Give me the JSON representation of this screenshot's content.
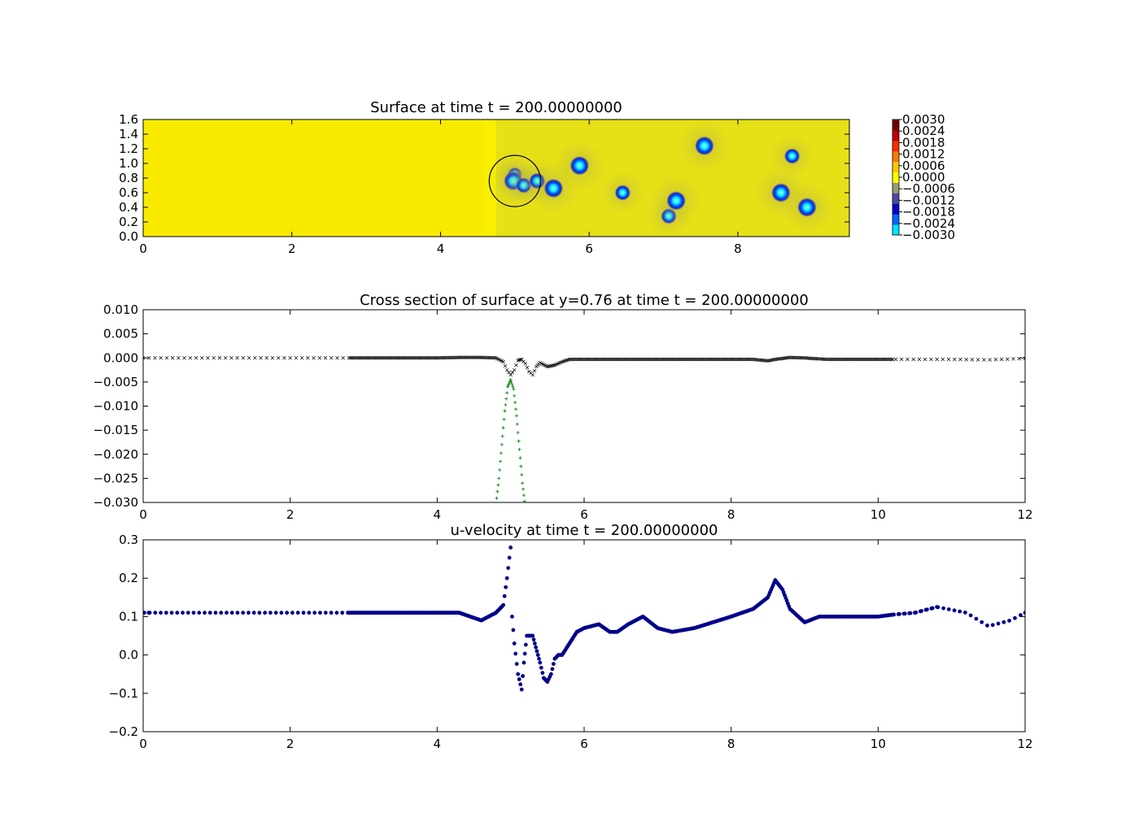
{
  "chart_data": [
    {
      "type": "heatmap",
      "title": "Surface at time t =   200.00000000",
      "xlim": [
        0,
        9.5
      ],
      "ylim": [
        0,
        1.6
      ],
      "xticks": [
        "0",
        "2",
        "4",
        "6",
        "8"
      ],
      "yticks": [
        "0.0",
        "0.2",
        "0.4",
        "0.6",
        "0.8",
        "1.0",
        "1.2",
        "1.4",
        "1.6"
      ],
      "colorbar": {
        "range": [
          -0.003,
          0.003
        ],
        "labels": [
          "0.0030",
          "0.0024",
          "0.0018",
          "0.0012",
          "0.0006",
          "0.0000",
          "−0.0006",
          "−0.0012",
          "−0.0018",
          "−0.0024",
          "−0.0030"
        ],
        "colormap": [
          "#00e5ff",
          "#0066ff",
          "#0000cc",
          "#4a4aa0",
          "#9a9a70",
          "#ffff00",
          "#ffc800",
          "#ff7a00",
          "#ff2a00",
          "#c00000",
          "#700000"
        ]
      },
      "background_color": "#f8f000",
      "depressions": [
        {
          "x": 5.0,
          "y": 0.85,
          "value": -0.0022
        },
        {
          "x": 4.98,
          "y": 0.76,
          "value": -0.003
        },
        {
          "x": 5.12,
          "y": 0.7,
          "value": -0.0024
        },
        {
          "x": 5.3,
          "y": 0.76,
          "value": -0.0025
        },
        {
          "x": 5.52,
          "y": 0.66,
          "value": -0.003
        },
        {
          "x": 5.87,
          "y": 0.97,
          "value": -0.003
        },
        {
          "x": 6.45,
          "y": 0.6,
          "value": -0.0024
        },
        {
          "x": 7.07,
          "y": 0.28,
          "value": -0.0024
        },
        {
          "x": 7.17,
          "y": 0.49,
          "value": -0.003
        },
        {
          "x": 7.55,
          "y": 1.24,
          "value": -0.003
        },
        {
          "x": 8.58,
          "y": 0.6,
          "value": -0.003
        },
        {
          "x": 8.73,
          "y": 1.1,
          "value": -0.0024
        },
        {
          "x": 8.93,
          "y": 0.4,
          "value": -0.003
        }
      ],
      "annotation_circle": {
        "x": 5.0,
        "y": 0.76,
        "radius": 0.35
      }
    },
    {
      "type": "scatter",
      "title": "Cross section of surface at y=0.76 at time t =   200.00000000",
      "xlim": [
        0,
        12
      ],
      "ylim": [
        -0.03,
        0.01
      ],
      "xticks": [
        "0",
        "2",
        "4",
        "6",
        "8",
        "10",
        "12"
      ],
      "yticks": [
        "0.010",
        "0.005",
        "0.000",
        "−0.005",
        "−0.010",
        "−0.015",
        "−0.020",
        "−0.025",
        "−0.030"
      ],
      "series": [
        {
          "marker": "x",
          "color": "#000000",
          "x": [
            0,
            0.5,
            1.0,
            1.5,
            2.0,
            2.5,
            2.8,
            3.5,
            4.0,
            4.3,
            4.6,
            4.8,
            4.9,
            4.95,
            5.0,
            5.05,
            5.1,
            5.15,
            5.2,
            5.25,
            5.3,
            5.35,
            5.4,
            5.5,
            5.6,
            5.7,
            5.8,
            6.0,
            6.5,
            7.0,
            7.5,
            8.0,
            8.3,
            8.5,
            8.6,
            8.8,
            9.0,
            9.3,
            9.6,
            10.0,
            10.2,
            10.5,
            11.0,
            11.5,
            12.0
          ],
          "y": [
            0.0,
            0.0,
            0.0,
            0.0,
            0.0,
            0.0,
            0.0,
            0.0,
            0.0,
            0.0001,
            0.0001,
            0.0,
            -0.0008,
            -0.0025,
            -0.0035,
            -0.0025,
            -0.0005,
            -0.0003,
            -0.0012,
            -0.0028,
            -0.0035,
            -0.0018,
            -0.001,
            -0.0018,
            -0.0015,
            -0.0008,
            -0.0003,
            -0.0003,
            -0.0003,
            -0.0003,
            -0.0003,
            -0.0003,
            -0.0003,
            -0.0006,
            -0.0003,
            0.0001,
            0.0,
            -0.0003,
            -0.0003,
            -0.0003,
            -0.0003,
            -0.0003,
            -0.0003,
            -0.0004,
            -0.0001
          ]
        },
        {
          "marker": "+",
          "color": "#007f00",
          "x": [
            4.8,
            4.84,
            4.88,
            4.92,
            4.96,
            5.0,
            5.04,
            5.08,
            5.12,
            5.16,
            5.2
          ],
          "y": [
            -0.0305,
            -0.025,
            -0.018,
            -0.011,
            -0.006,
            -0.0045,
            -0.0065,
            -0.012,
            -0.019,
            -0.026,
            -0.031
          ]
        }
      ]
    },
    {
      "type": "scatter",
      "title": "u-velocity at time t =   200.00000000",
      "xlim": [
        0,
        12
      ],
      "ylim": [
        -0.2,
        0.3
      ],
      "xticks": [
        "0",
        "2",
        "4",
        "6",
        "8",
        "10",
        "12"
      ],
      "yticks": [
        "0.3",
        "0.2",
        "0.1",
        "0.0",
        "−0.1",
        "−0.2"
      ],
      "series": [
        {
          "marker": "o",
          "color": "#00008b",
          "x": [
            0,
            1,
            2,
            2.8,
            3.5,
            4.0,
            4.3,
            4.6,
            4.8,
            4.9,
            4.95,
            5.0,
            5.02,
            5.05,
            5.1,
            5.15,
            5.18,
            5.22,
            5.3,
            5.4,
            5.45,
            5.5,
            5.55,
            5.6,
            5.65,
            5.7,
            5.8,
            5.9,
            6.0,
            6.2,
            6.35,
            6.45,
            6.6,
            6.8,
            7.0,
            7.2,
            7.5,
            8.0,
            8.3,
            8.5,
            8.6,
            8.7,
            8.8,
            9.0,
            9.2,
            9.5,
            10.0,
            10.2,
            10.5,
            10.8,
            11.2,
            11.5,
            11.8,
            12.0
          ],
          "y": [
            0.11,
            0.11,
            0.11,
            0.11,
            0.11,
            0.11,
            0.11,
            0.09,
            0.11,
            0.13,
            0.2,
            0.28,
            0.1,
            0.03,
            -0.05,
            -0.09,
            -0.02,
            0.05,
            0.05,
            -0.02,
            -0.06,
            -0.07,
            -0.05,
            -0.01,
            0.0,
            0.0,
            0.03,
            0.06,
            0.07,
            0.08,
            0.06,
            0.06,
            0.08,
            0.1,
            0.07,
            0.06,
            0.07,
            0.1,
            0.12,
            0.15,
            0.195,
            0.17,
            0.12,
            0.085,
            0.1,
            0.1,
            0.1,
            0.105,
            0.11,
            0.125,
            0.11,
            0.075,
            0.09,
            0.11
          ]
        }
      ]
    }
  ]
}
